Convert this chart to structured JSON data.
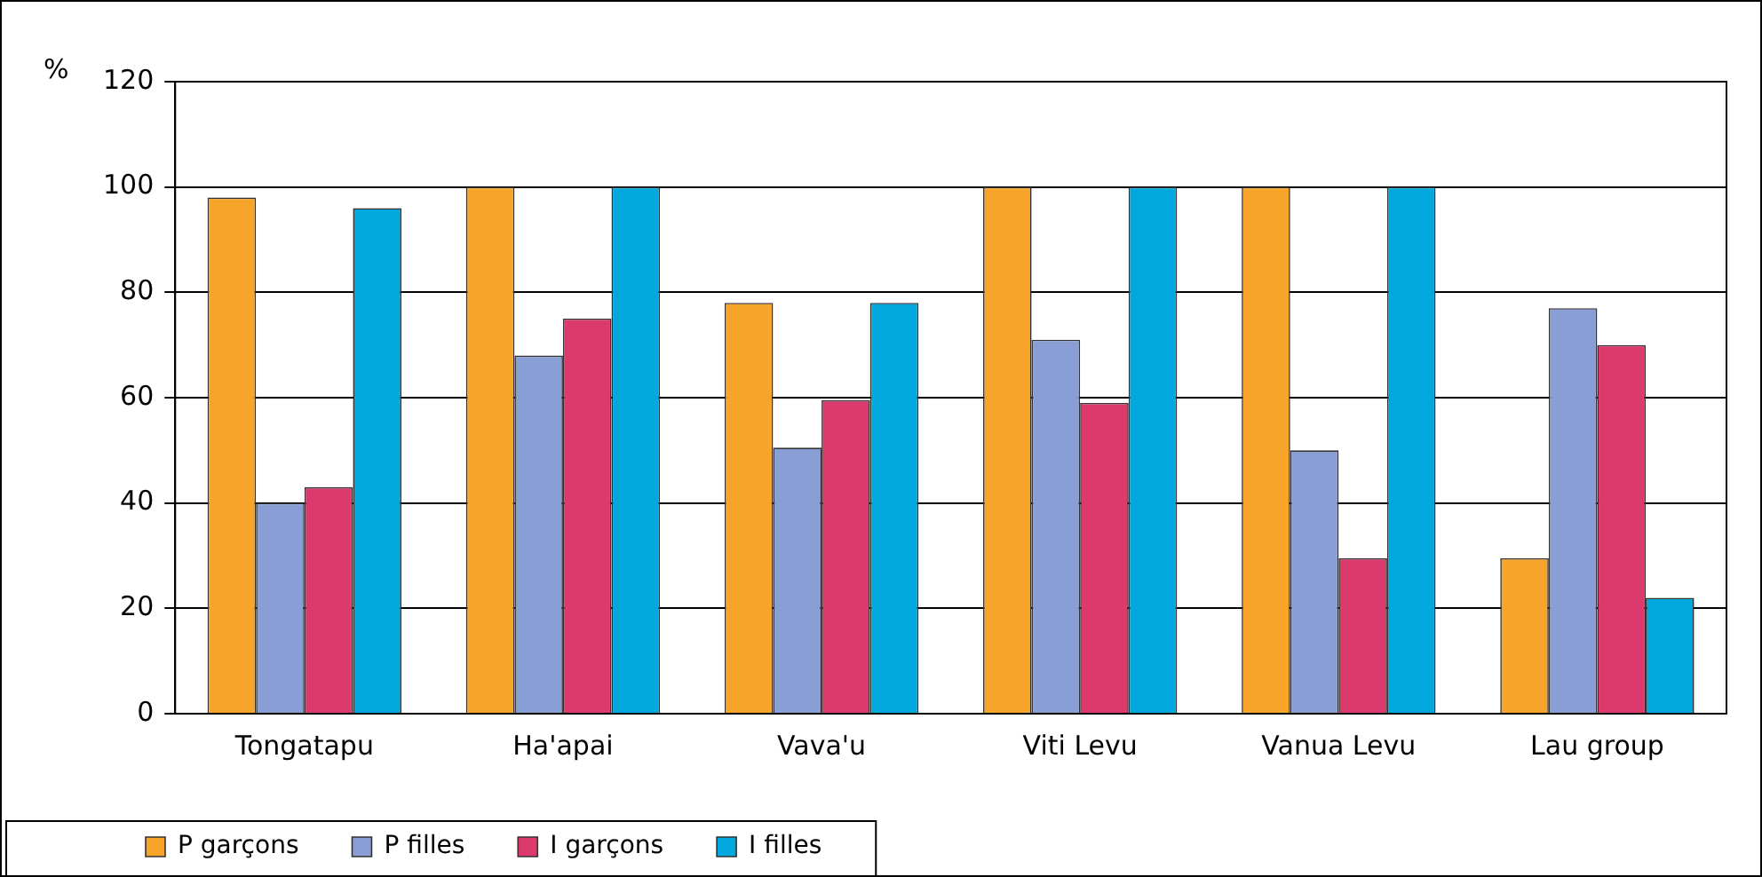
{
  "chart_data": {
    "type": "bar",
    "ylabel": "%",
    "categories": [
      "Tongatapu",
      "Ha'apai",
      "Vava'u",
      "Viti Levu",
      "Vanua Levu",
      "Lau group"
    ],
    "series": [
      {
        "name": "P garçons",
        "color": "#f7a52a",
        "values": [
          98,
          100,
          78,
          100,
          100,
          29.5
        ]
      },
      {
        "name": "P filles",
        "color": "#8a9ed6",
        "values": [
          40,
          68,
          50.5,
          71,
          50,
          77
        ]
      },
      {
        "name": "I garçons",
        "color": "#dc3a6c",
        "values": [
          43,
          75,
          59.5,
          59,
          29.5,
          70
        ]
      },
      {
        "name": "I filles",
        "color": "#00a8de",
        "values": [
          96,
          100,
          78,
          100,
          100,
          22
        ]
      }
    ],
    "ylim": [
      0,
      120
    ],
    "yticks": [
      0,
      20,
      40,
      60,
      80,
      100,
      120
    ],
    "grid": "y",
    "legend": "bottom"
  }
}
